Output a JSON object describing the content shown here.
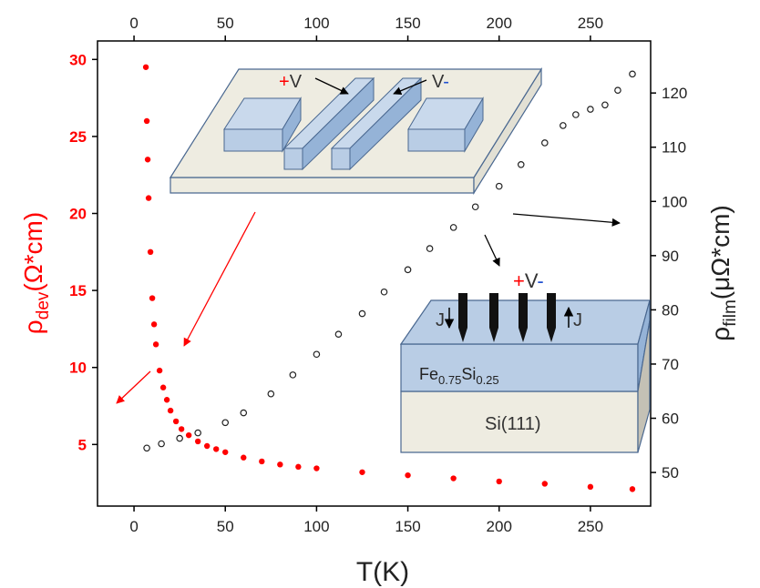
{
  "chart_data": {
    "type": "scatter",
    "xlabel": "T(K)",
    "ylabel_parts": [
      "ρ",
      "dev",
      "(Ω*cm)"
    ],
    "y2label_parts": [
      "ρ",
      "film",
      "(μΩ*cm)"
    ],
    "xlim": [
      -20,
      283
    ],
    "ylim": [
      1,
      31.2
    ],
    "y2lim": [
      43.8,
      129.6
    ],
    "xticks": [
      0,
      50,
      100,
      150,
      200,
      250
    ],
    "yticks": [
      5,
      10,
      15,
      20,
      25,
      30
    ],
    "y2ticks": [
      50,
      60,
      70,
      80,
      90,
      100,
      110,
      120
    ],
    "ytick_color": "#ff0000",
    "series": [
      {
        "color": "#ff0000",
        "axis": "y",
        "marker": "filled",
        "x": [
          6.5,
          7,
          7.5,
          8,
          9,
          10,
          11,
          12,
          14,
          16,
          18,
          20,
          23,
          26,
          30,
          35,
          40,
          45,
          50,
          60,
          70,
          80,
          90,
          100,
          125,
          150,
          175,
          200,
          225,
          250,
          273
        ],
        "values": [
          29.5,
          26,
          23.5,
          21,
          17.5,
          14.5,
          12.8,
          11.5,
          9.8,
          8.7,
          7.9,
          7.2,
          6.5,
          6.0,
          5.6,
          5.2,
          4.9,
          4.7,
          4.5,
          4.15,
          3.9,
          3.7,
          3.55,
          3.45,
          3.2,
          3.0,
          2.8,
          2.6,
          2.45,
          2.25,
          2.1
        ]
      },
      {
        "color": "#222222",
        "axis": "y2",
        "marker": "hollow",
        "x": [
          7,
          15,
          25,
          35,
          50,
          60,
          75,
          87,
          100,
          112,
          125,
          137,
          150,
          162,
          175,
          187,
          200,
          212,
          225,
          235,
          242,
          250,
          258,
          265,
          273
        ],
        "values": [
          54.5,
          55.3,
          56.3,
          57.3,
          59.2,
          61,
          64.5,
          68,
          71.8,
          75.5,
          79.3,
          83.3,
          87.4,
          91.3,
          95.2,
          99,
          102.8,
          106.8,
          110.8,
          114,
          116,
          117,
          117.8,
          120.5,
          123.5
        ]
      }
    ],
    "inset_top_labels": [
      "+",
      "V",
      "V",
      "-"
    ],
    "inset_bottom_labels": [
      "+",
      "V",
      "-",
      "J",
      "J"
    ],
    "film_label": [
      "Fe",
      "0.75",
      "Si",
      "0.25"
    ],
    "substrate_label": "Si(111)"
  }
}
